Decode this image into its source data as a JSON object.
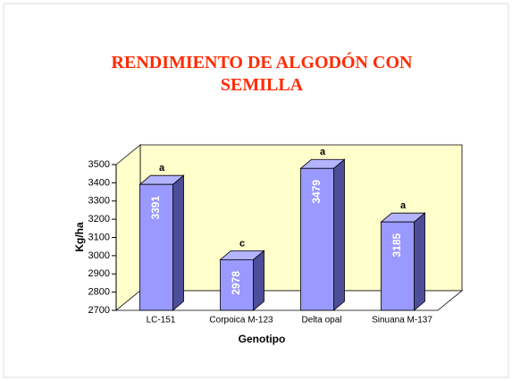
{
  "chart_data": {
    "type": "bar3d",
    "title": "RENDIMIENTO DE ALGODÓN CON SEMILLA",
    "categories": [
      "LC-151",
      "Corpoica M-123",
      "Delta opal",
      "Sinuana M-137"
    ],
    "values": [
      3391,
      2978,
      3479,
      3185
    ],
    "annotations": [
      "a",
      "c",
      "a",
      "a"
    ],
    "color": "#9999ff",
    "xlabel": "Genotipo",
    "ylabel": "Kg/ha",
    "ylim": [
      2700,
      3500
    ],
    "yticks": [
      2700,
      2800,
      2900,
      3000,
      3100,
      3200,
      3300,
      3400,
      3500
    ]
  }
}
